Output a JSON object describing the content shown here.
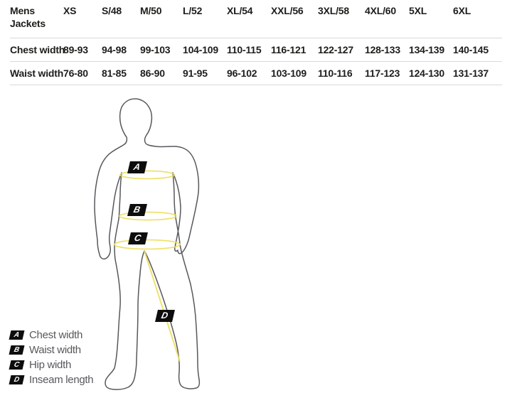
{
  "table": {
    "corner_header": "Mens Jackets",
    "columns": [
      "XS",
      "S/48",
      "M/50",
      "L/52",
      "XL/54",
      "XXL/56",
      "3XL/58",
      "4XL/60",
      "5XL",
      "6XL"
    ],
    "rows": [
      {
        "label": "Chest width",
        "values": [
          "89-93",
          "94-98",
          "99-103",
          "104-109",
          "110-115",
          "116-121",
          "122-127",
          "128-133",
          "134-139",
          "140-145"
        ]
      },
      {
        "label": "Waist width",
        "values": [
          "76-80",
          "81-85",
          "86-90",
          "91-95",
          "96-102",
          "103-109",
          "110-116",
          "117-123",
          "124-130",
          "131-137"
        ]
      }
    ]
  },
  "chart_data": {
    "type": "table",
    "title": "Mens Jackets",
    "columns": [
      "XS",
      "S/48",
      "M/50",
      "L/52",
      "XL/54",
      "XXL/56",
      "3XL/58",
      "4XL/60",
      "5XL",
      "6XL"
    ],
    "rows": [
      {
        "label": "Chest width",
        "values": [
          "89-93",
          "94-98",
          "99-103",
          "104-109",
          "110-115",
          "116-121",
          "122-127",
          "128-133",
          "134-139",
          "140-145"
        ]
      },
      {
        "label": "Waist width",
        "values": [
          "76-80",
          "81-85",
          "86-90",
          "91-95",
          "96-102",
          "103-109",
          "110-116",
          "117-123",
          "124-130",
          "131-137"
        ]
      }
    ]
  },
  "figure": {
    "markers": [
      {
        "letter": "A"
      },
      {
        "letter": "B"
      },
      {
        "letter": "C"
      },
      {
        "letter": "D"
      }
    ]
  },
  "legend": {
    "items": [
      {
        "letter": "A",
        "label": "Chest width"
      },
      {
        "letter": "B",
        "label": "Waist width"
      },
      {
        "letter": "C",
        "label": "Hip width"
      },
      {
        "letter": "D",
        "label": "Inseam length"
      }
    ]
  },
  "colors": {
    "accent_yellow": "#ede061",
    "silhouette_grey": "#57585c",
    "text_dark": "#1d1d1b",
    "legend_text": "#57585c",
    "divider": "#d9d9d9",
    "marker_black": "#0d0d0d",
    "page_background": "#ffffff"
  }
}
